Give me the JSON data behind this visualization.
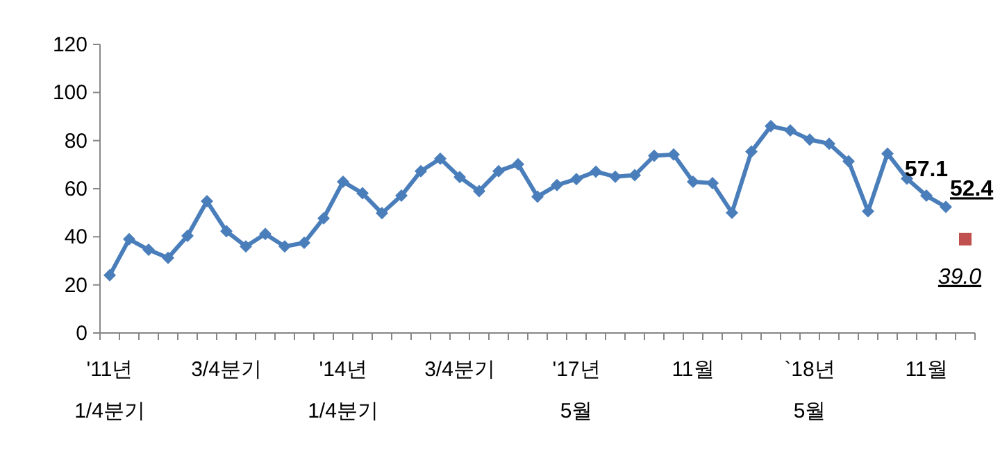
{
  "chart_data": {
    "type": "line",
    "categories": [
      "'11년\n1/4분기",
      null,
      null,
      null,
      null,
      null,
      "3/4분기",
      null,
      null,
      null,
      null,
      null,
      "'14년\n1/4분기",
      null,
      null,
      null,
      null,
      null,
      "3/4분기",
      null,
      null,
      null,
      null,
      null,
      "'17년\n5월",
      null,
      null,
      null,
      null,
      null,
      "11월",
      null,
      null,
      null,
      null,
      null,
      "`18년\n5월",
      null,
      null,
      null,
      null,
      null,
      "11월",
      null,
      null
    ],
    "series": [
      {
        "color": "#4a7ebb",
        "marker": "diamond",
        "values": [
          24.0,
          39.0,
          34.6,
          31.2,
          40.4,
          54.8,
          42.3,
          36.0,
          41.2,
          36.0,
          37.5,
          47.7,
          62.9,
          58.1,
          49.8,
          57.1,
          67.3,
          72.5,
          64.8,
          59.0,
          67.3,
          70.2,
          56.7,
          61.5,
          64.0,
          67.1,
          65.0,
          65.6,
          73.7,
          74.2,
          62.9,
          62.3,
          50.0,
          75.4,
          86.0,
          84.2,
          80.4,
          78.7,
          71.4,
          50.6,
          74.6,
          64.2,
          57.1,
          52.4,
          null
        ],
        "value_labels": [
          null,
          null,
          null,
          null,
          null,
          null,
          null,
          null,
          null,
          null,
          null,
          null,
          null,
          null,
          null,
          null,
          null,
          null,
          null,
          null,
          null,
          null,
          null,
          null,
          null,
          null,
          null,
          null,
          null,
          null,
          null,
          null,
          null,
          null,
          null,
          null,
          null,
          null,
          null,
          null,
          null,
          null,
          "57.1",
          "52.4",
          null
        ]
      },
      {
        "type": "scatter",
        "color": "#c0504d",
        "marker": "square",
        "values": [
          null,
          null,
          null,
          null,
          null,
          null,
          null,
          null,
          null,
          null,
          null,
          null,
          null,
          null,
          null,
          null,
          null,
          null,
          null,
          null,
          null,
          null,
          null,
          null,
          null,
          null,
          null,
          null,
          null,
          null,
          null,
          null,
          null,
          null,
          null,
          null,
          null,
          null,
          null,
          null,
          null,
          null,
          null,
          null,
          39.0
        ],
        "value_labels": [
          null,
          null,
          null,
          null,
          null,
          null,
          null,
          null,
          null,
          null,
          null,
          null,
          null,
          null,
          null,
          null,
          null,
          null,
          null,
          null,
          null,
          null,
          null,
          null,
          null,
          null,
          null,
          null,
          null,
          null,
          null,
          null,
          null,
          null,
          null,
          null,
          null,
          null,
          null,
          null,
          null,
          null,
          null,
          null,
          "39.0"
        ]
      }
    ],
    "ylim": [
      0,
      120
    ],
    "yticks": [
      0,
      20,
      40,
      60,
      80,
      100,
      120
    ],
    "grid": false
  }
}
